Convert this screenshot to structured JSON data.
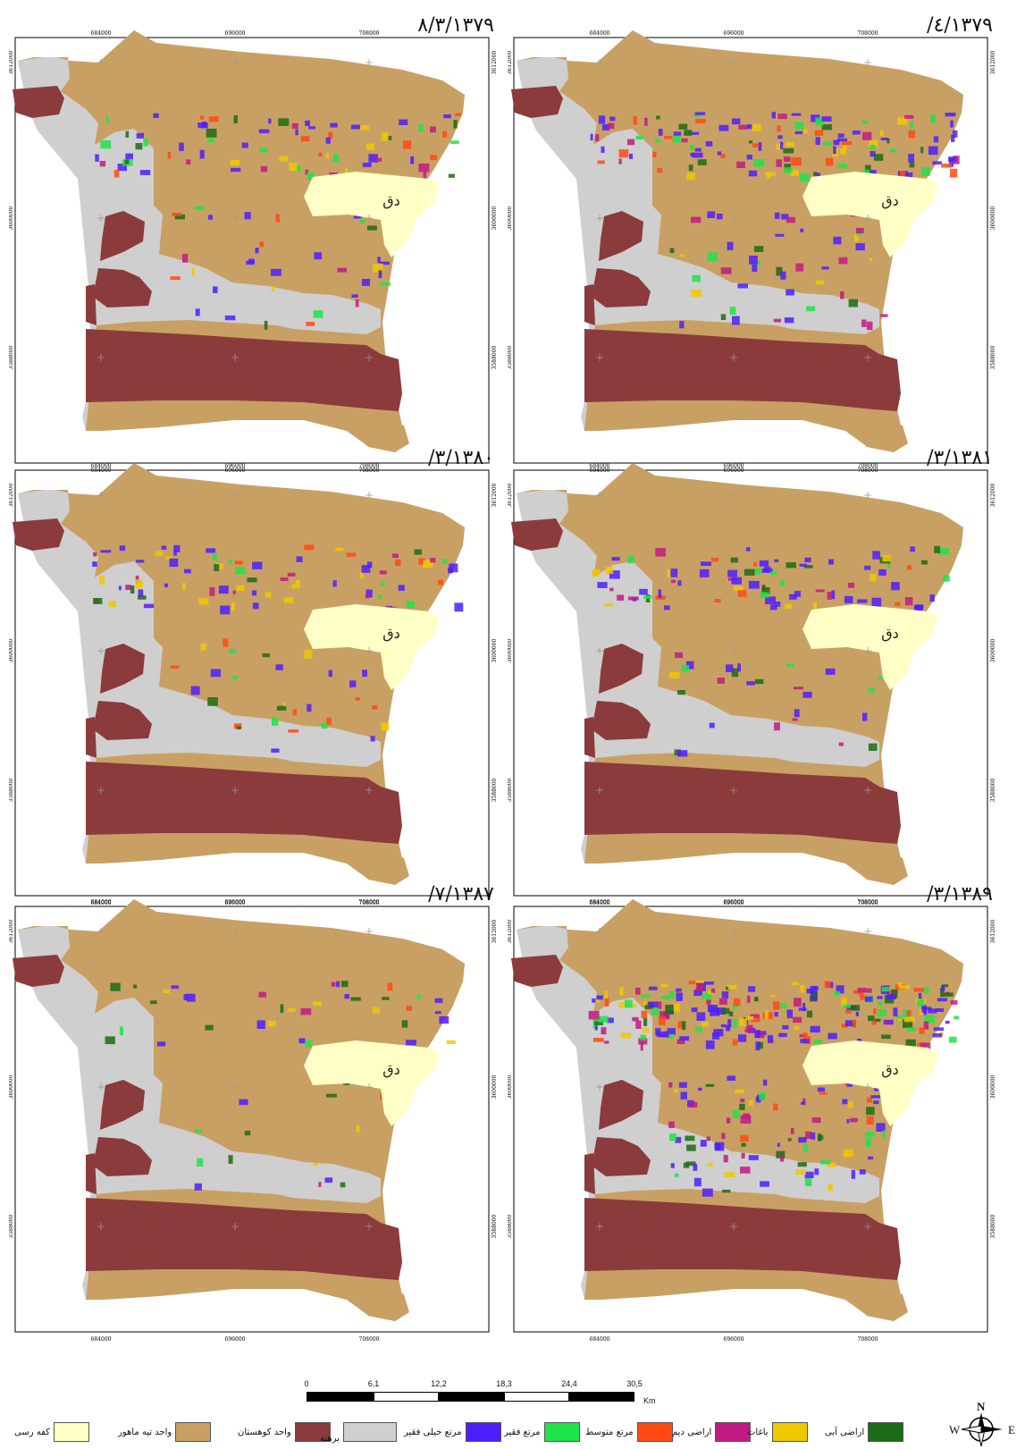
{
  "maps": [
    {
      "date": "۸/۳/۱۳۷۹",
      "veg": "light"
    },
    {
      "date": "/٤/۱۳۷۹",
      "veg": "medium"
    },
    {
      "date": "/۳/۱۳۸۰",
      "veg": "light"
    },
    {
      "date": "/۳/۱۳۸۱",
      "veg": "light"
    },
    {
      "date": "/۷/۱۳۸۷",
      "veg": "sparse"
    },
    {
      "date": "/۳/۱۳۸۹",
      "veg": "heavy"
    }
  ],
  "place_label": "دق",
  "x_ticks": [
    "684000",
    "696000",
    "708000"
  ],
  "y_ticks": [
    "3612000",
    "3600000",
    "3588000"
  ],
  "scale": {
    "labels": [
      "0",
      "6,1",
      "12,2",
      "18,3",
      "24,4",
      "30,5"
    ],
    "unit": "Km"
  },
  "legend": [
    {
      "label": "کفه رسی",
      "color": "#ffffc6"
    },
    {
      "label": "واحد تپه ماهور",
      "color": "#c9a064"
    },
    {
      "label": "واحد کوهستان",
      "color": "#8b3b3b"
    },
    {
      "label": "برهنه",
      "color": "#cfcfcf"
    },
    {
      "label": "مرتع خیلی فقیر",
      "color": "#4d1fff"
    },
    {
      "label": "مرتع فقیر",
      "color": "#1ee34a"
    },
    {
      "label": "مرتع متوسط",
      "color": "#ff4a14"
    },
    {
      "label": "اراضی دیم",
      "color": "#c21a84"
    },
    {
      "label": "باغات",
      "color": "#f0c800"
    },
    {
      "label": "اراضی آبی",
      "color": "#1c6b16"
    }
  ],
  "compass": {
    "n": "N",
    "w": "W",
    "e": "E"
  }
}
